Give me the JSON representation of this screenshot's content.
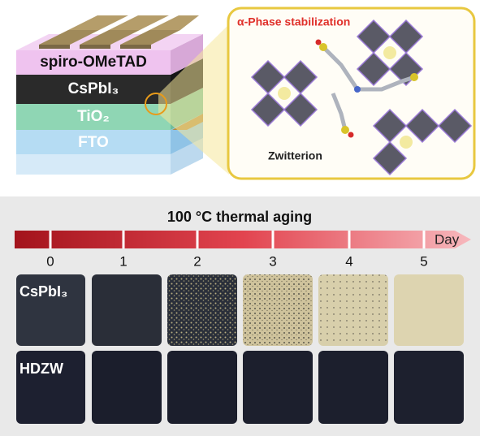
{
  "device": {
    "layers": [
      "spiro-OMeTAD",
      "CsPbI₃",
      "TiO₂",
      "FTO"
    ]
  },
  "inset": {
    "title": "α-Phase stabilization",
    "molecule": "Zwitterion"
  },
  "aging": {
    "title": "100 °C thermal aging",
    "unit": "Day",
    "days": [
      "0",
      "1",
      "2",
      "3",
      "4",
      "5"
    ],
    "rows": [
      "CsPbI₃",
      "HDZW"
    ]
  }
}
